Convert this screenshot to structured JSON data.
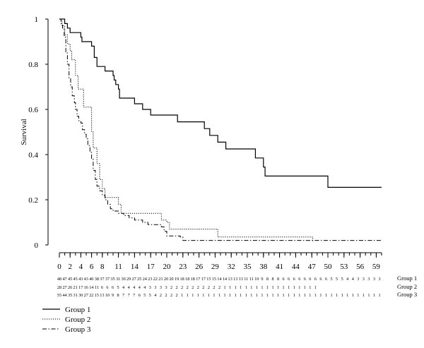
{
  "chart_data": {
    "type": "line",
    "subtype": "kaplan-meier",
    "title": "",
    "xlabel": "",
    "ylabel": "Survival",
    "xlim": [
      0,
      60
    ],
    "ylim": [
      0,
      1
    ],
    "y_ticks": [
      "0",
      "0.2",
      "0.4",
      "0.6",
      "0.8",
      "1"
    ],
    "x_ticks": [
      "0",
      "2",
      "4",
      "6",
      "8",
      "11",
      "14",
      "17",
      "20",
      "23",
      "26",
      "29",
      "32",
      "35",
      "38",
      "41",
      "44",
      "47",
      "50",
      "53",
      "56",
      "59"
    ],
    "grid": false,
    "legend_position": "bottom-left",
    "series": [
      {
        "name": "Group 1",
        "style": "solid",
        "points": [
          [
            0,
            1
          ],
          [
            1,
            0.98
          ],
          [
            1.5,
            0.96
          ],
          [
            2,
            0.94
          ],
          [
            4,
            0.92
          ],
          [
            4.2,
            0.9
          ],
          [
            6,
            0.88
          ],
          [
            6.5,
            0.83
          ],
          [
            7,
            0.79
          ],
          [
            8.5,
            0.77
          ],
          [
            10,
            0.75
          ],
          [
            10.2,
            0.73
          ],
          [
            10.5,
            0.71
          ],
          [
            11,
            0.69
          ],
          [
            11.2,
            0.65
          ],
          [
            14,
            0.625
          ],
          [
            15.5,
            0.6
          ],
          [
            17,
            0.575
          ],
          [
            22,
            0.545
          ],
          [
            27,
            0.515
          ],
          [
            28,
            0.485
          ],
          [
            29.5,
            0.455
          ],
          [
            31,
            0.425
          ],
          [
            36.5,
            0.385
          ],
          [
            38,
            0.345
          ],
          [
            38.3,
            0.305
          ],
          [
            49.8,
            0.305
          ],
          [
            50,
            0.255
          ],
          [
            60,
            0.255
          ]
        ]
      },
      {
        "name": "Group 2",
        "style": "dotted",
        "points": [
          [
            0,
            1
          ],
          [
            0.5,
            0.97
          ],
          [
            1,
            0.93
          ],
          [
            1.5,
            0.89
          ],
          [
            2,
            0.86
          ],
          [
            2.3,
            0.82
          ],
          [
            3,
            0.75
          ],
          [
            3.5,
            0.69
          ],
          [
            4.5,
            0.61
          ],
          [
            6,
            0.5
          ],
          [
            6.3,
            0.43
          ],
          [
            7,
            0.36
          ],
          [
            7.5,
            0.29
          ],
          [
            8,
            0.25
          ],
          [
            8.5,
            0.21
          ],
          [
            11,
            0.18
          ],
          [
            11.5,
            0.14
          ],
          [
            18,
            0.14
          ],
          [
            19,
            0.11
          ],
          [
            20,
            0.1
          ],
          [
            20.5,
            0.07
          ],
          [
            29,
            0.07
          ],
          [
            29.5,
            0.035
          ],
          [
            47,
            0.035
          ],
          [
            47.2,
            0.015
          ]
        ]
      },
      {
        "name": "Group 3",
        "style": "dashdot",
        "points": [
          [
            0,
            1
          ],
          [
            0.3,
            0.98
          ],
          [
            0.6,
            0.96
          ],
          [
            0.9,
            0.92
          ],
          [
            1.2,
            0.85
          ],
          [
            1.5,
            0.8
          ],
          [
            1.8,
            0.74
          ],
          [
            2.1,
            0.7
          ],
          [
            2.4,
            0.66
          ],
          [
            2.8,
            0.63
          ],
          [
            3,
            0.6
          ],
          [
            3.3,
            0.57
          ],
          [
            3.6,
            0.55
          ],
          [
            4,
            0.54
          ],
          [
            4.3,
            0.51
          ],
          [
            4.7,
            0.49
          ],
          [
            5,
            0.47
          ],
          [
            5.3,
            0.44
          ],
          [
            5.7,
            0.41
          ],
          [
            6,
            0.38
          ],
          [
            6.3,
            0.33
          ],
          [
            6.7,
            0.29
          ],
          [
            7,
            0.26
          ],
          [
            7.5,
            0.24
          ],
          [
            8,
            0.22
          ],
          [
            8.5,
            0.2
          ],
          [
            9,
            0.18
          ],
          [
            9.5,
            0.16
          ],
          [
            10,
            0.15
          ],
          [
            11,
            0.14
          ],
          [
            12,
            0.13
          ],
          [
            13,
            0.12
          ],
          [
            14,
            0.11
          ],
          [
            15.5,
            0.1
          ],
          [
            16.5,
            0.09
          ],
          [
            19,
            0.08
          ],
          [
            19.5,
            0.06
          ],
          [
            20,
            0.04
          ],
          [
            22.5,
            0.035
          ],
          [
            23,
            0.02
          ],
          [
            60,
            0.02
          ]
        ]
      }
    ],
    "risk_table": {
      "rows": [
        {
          "label": "Group 1",
          "numbers": [
            "48",
            "47",
            "45",
            "45",
            "43",
            "43",
            "40",
            "38",
            "37",
            "37",
            "35",
            "31",
            "30",
            "29",
            "27",
            "25",
            "24",
            "23",
            "22",
            "21",
            "20",
            "20",
            "19",
            "18",
            "18",
            "18",
            "17",
            "17",
            "15",
            "15",
            "14",
            "14",
            "13",
            "13",
            "13",
            "11",
            "11",
            "10",
            "9",
            "8",
            "8",
            "8",
            "6",
            "6",
            "6",
            "6",
            "6",
            "6",
            "6",
            "6",
            "6",
            "5",
            "5",
            "5",
            "4",
            "4",
            "3",
            "3",
            "3",
            "3",
            "3"
          ]
        },
        {
          "label": "Group 2",
          "numbers": [
            "28",
            "27",
            "26",
            "21",
            "17",
            "16",
            "14",
            "11",
            "6",
            "6",
            "6",
            "5",
            "4",
            "4",
            "4",
            "4",
            "4",
            "3",
            "3",
            "3",
            "3",
            "2",
            "2",
            "2",
            "2",
            "2",
            "2",
            "2",
            "2",
            "2",
            "2",
            "1",
            "1",
            "1",
            "1",
            "1",
            "1",
            "1",
            "1",
            "1",
            "1",
            "1",
            "1",
            "1",
            "1",
            "1",
            "1",
            "1",
            "1"
          ]
        },
        {
          "label": "Group 3",
          "numbers": [
            "55",
            "44",
            "35",
            "31",
            "30",
            "27",
            "22",
            "15",
            "13",
            "10",
            "9",
            "8",
            "7",
            "7",
            "7",
            "6",
            "5",
            "5",
            "4",
            "2",
            "2",
            "2",
            "2",
            "1",
            "1",
            "1",
            "1",
            "1",
            "1",
            "1",
            "1",
            "1",
            "1",
            "1",
            "1",
            "1",
            "1",
            "1",
            "1",
            "1",
            "1",
            "1",
            "1",
            "1",
            "1",
            "1",
            "1",
            "1",
            "1",
            "1",
            "1",
            "1",
            "1",
            "1",
            "1",
            "1",
            "1",
            "1",
            "1",
            "1",
            "1"
          ]
        }
      ]
    }
  }
}
